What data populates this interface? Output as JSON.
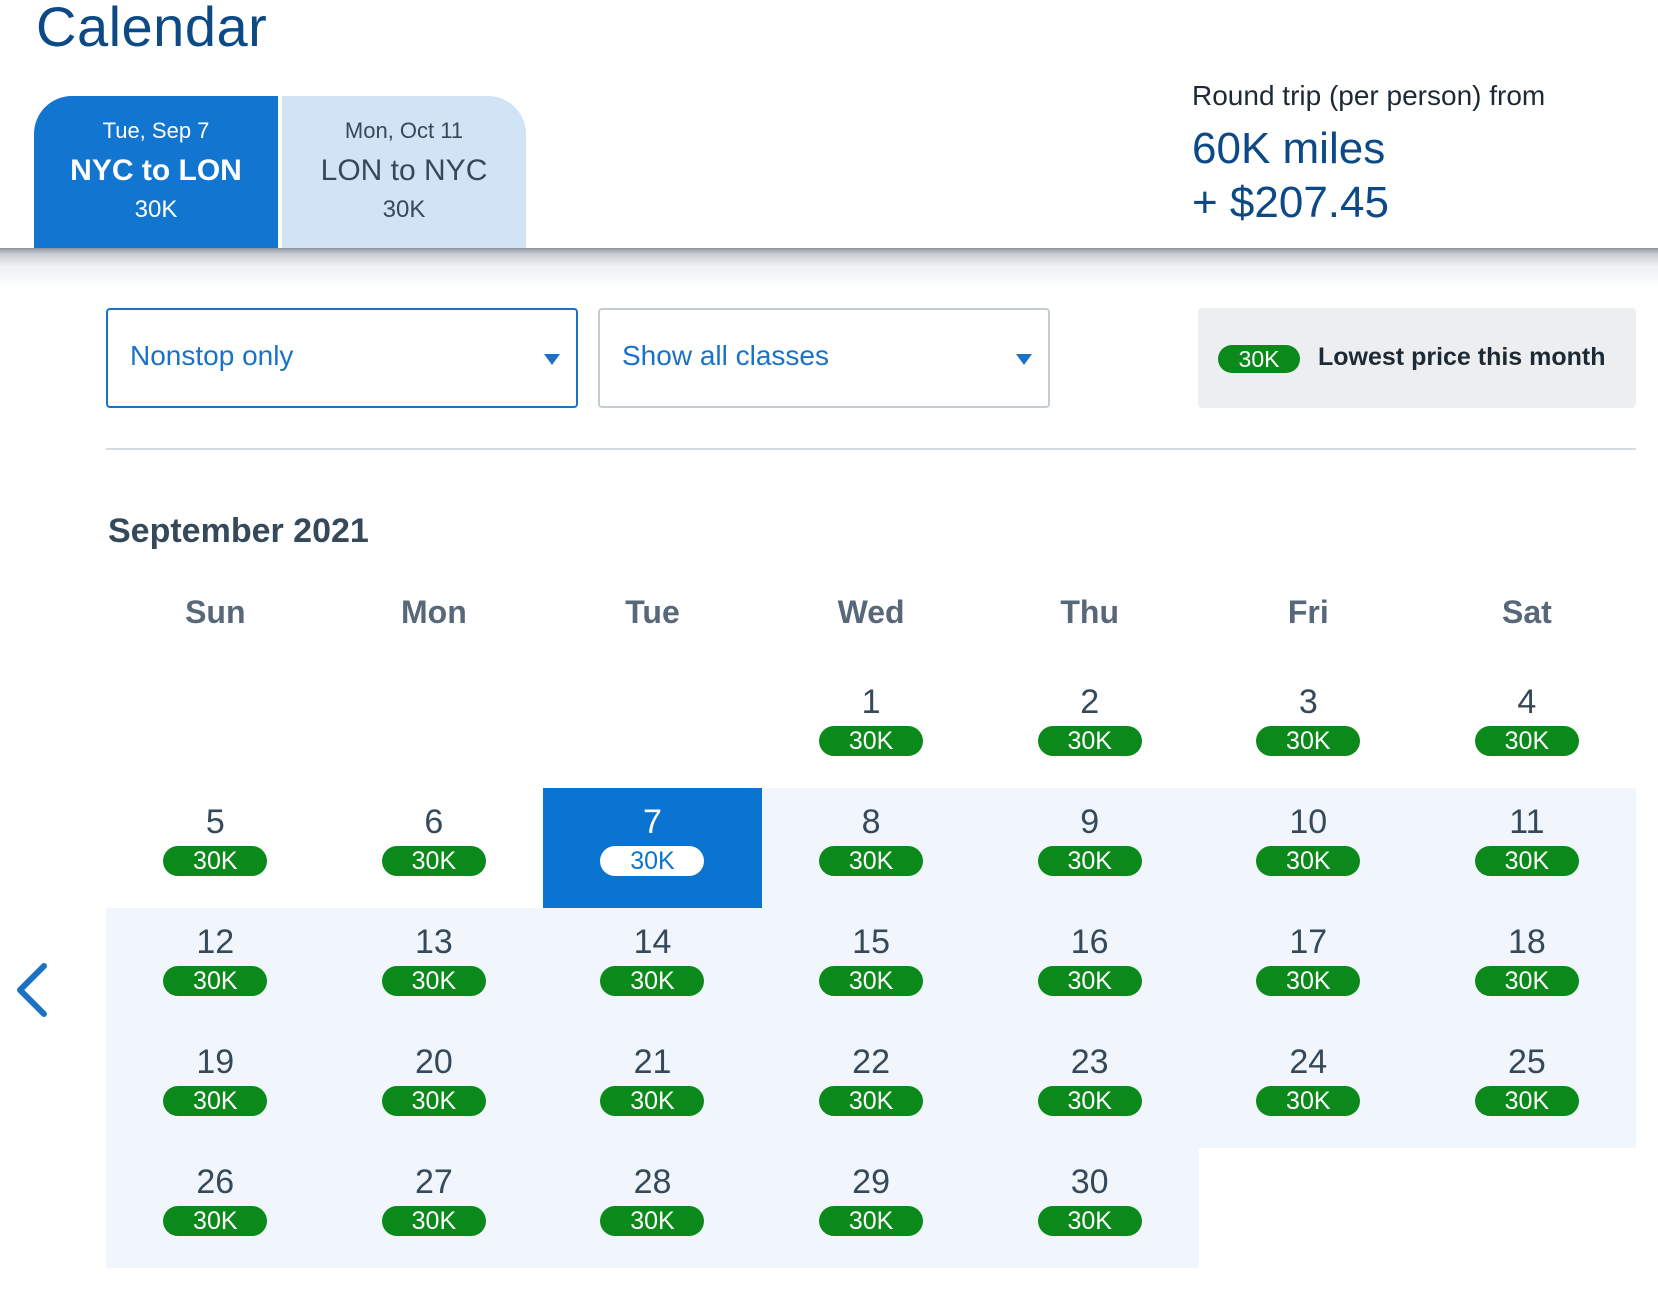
{
  "header": {
    "title": "Calendar",
    "tabs": [
      {
        "date": "Tue, Sep 7",
        "route": "NYC to LON",
        "price": "30K"
      },
      {
        "date": "Mon, Oct 11",
        "route": "LON to NYC",
        "price": "30K"
      }
    ],
    "summary": {
      "label": "Round trip (per person) from",
      "miles": "60K miles",
      "cash": "+ $207.45"
    }
  },
  "filters": {
    "stops": "Nonstop only",
    "classes": "Show all classes"
  },
  "legend": {
    "price": "30K",
    "label": "Lowest price this month"
  },
  "calendar": {
    "month": "September 2021",
    "weekdays": [
      "Sun",
      "Mon",
      "Tue",
      "Wed",
      "Thu",
      "Fri",
      "Sat"
    ],
    "selected_day": 7,
    "days": [
      {
        "day": "1",
        "price": "30K"
      },
      {
        "day": "2",
        "price": "30K"
      },
      {
        "day": "3",
        "price": "30K"
      },
      {
        "day": "4",
        "price": "30K"
      },
      {
        "day": "5",
        "price": "30K"
      },
      {
        "day": "6",
        "price": "30K"
      },
      {
        "day": "7",
        "price": "30K"
      },
      {
        "day": "8",
        "price": "30K"
      },
      {
        "day": "9",
        "price": "30K"
      },
      {
        "day": "10",
        "price": "30K"
      },
      {
        "day": "11",
        "price": "30K"
      },
      {
        "day": "12",
        "price": "30K"
      },
      {
        "day": "13",
        "price": "30K"
      },
      {
        "day": "14",
        "price": "30K"
      },
      {
        "day": "15",
        "price": "30K"
      },
      {
        "day": "16",
        "price": "30K"
      },
      {
        "day": "17",
        "price": "30K"
      },
      {
        "day": "18",
        "price": "30K"
      },
      {
        "day": "19",
        "price": "30K"
      },
      {
        "day": "20",
        "price": "30K"
      },
      {
        "day": "21",
        "price": "30K"
      },
      {
        "day": "22",
        "price": "30K"
      },
      {
        "day": "23",
        "price": "30K"
      },
      {
        "day": "24",
        "price": "30K"
      },
      {
        "day": "25",
        "price": "30K"
      },
      {
        "day": "26",
        "price": "30K"
      },
      {
        "day": "27",
        "price": "30K"
      },
      {
        "day": "28",
        "price": "30K"
      },
      {
        "day": "29",
        "price": "30K"
      },
      {
        "day": "30",
        "price": "30K"
      }
    ]
  },
  "colors": {
    "brand_blue": "#0b74d1",
    "price_green": "#0b8a1b",
    "range_shade": "#f0f6fc"
  },
  "icons": {
    "prev": "chevron-left-icon",
    "dropdown": "caret-down-icon"
  }
}
